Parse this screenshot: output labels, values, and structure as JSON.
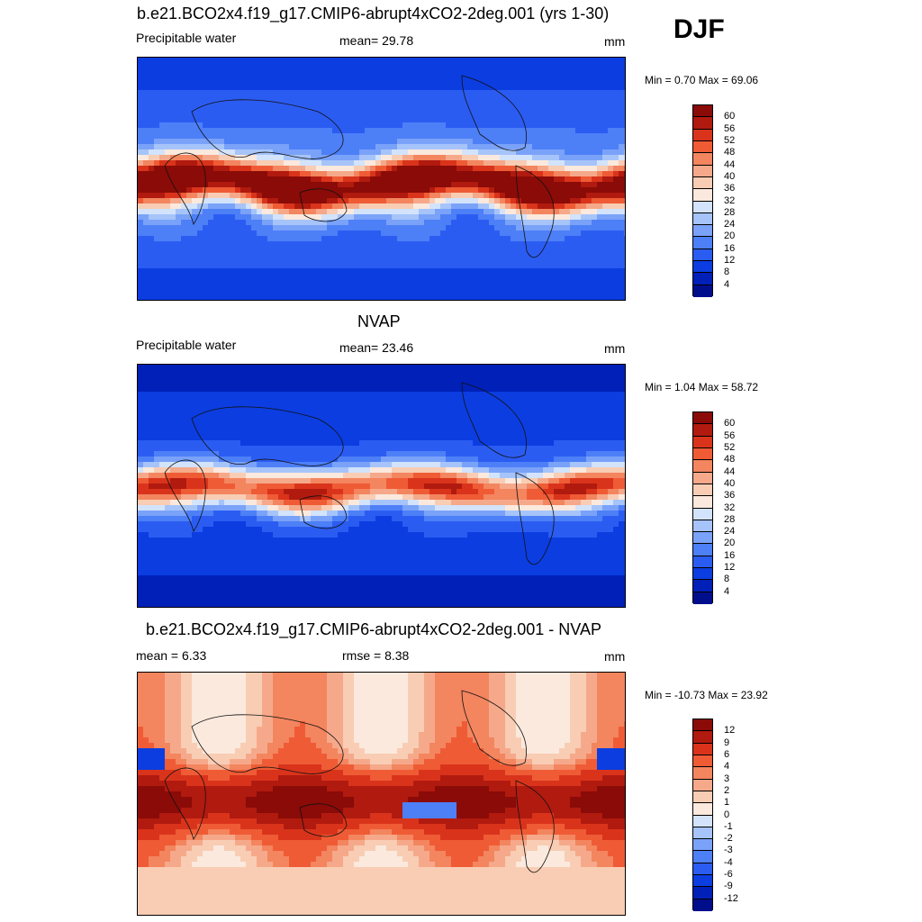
{
  "season": "DJF",
  "panels": [
    {
      "title": "b.e21.BCO2x4.f19_g17.CMIP6-abrupt4xCO2-2deg.001 (yrs 1-30)",
      "left_label": "Precipitable water",
      "mid_label": "mean=  29.78",
      "units": "mm",
      "minmax": "Min =   0.70 Max =  69.06"
    },
    {
      "title": "NVAP",
      "left_label": "Precipitable water",
      "mid_label": "mean=  23.46",
      "units": "mm",
      "minmax": "Min =   1.04 Max =  58.72"
    },
    {
      "title": "b.e21.BCO2x4.f19_g17.CMIP6-abrupt4xCO2-2deg.001 - NVAP",
      "left_label": "mean =   6.33",
      "mid_label": "rmse =   8.38",
      "units": "mm",
      "minmax": "Min = -10.73 Max =  23.92"
    }
  ],
  "chart_data": [
    {
      "type": "heatmap",
      "title": "b.e21.BCO2x4.f19_g17.CMIP6-abrupt4xCO2-2deg.001 (yrs 1-30)",
      "variable": "Precipitable water",
      "units": "mm",
      "mean": 29.78,
      "min": 0.7,
      "max": 69.06,
      "colorbar_levels": [
        4,
        8,
        12,
        16,
        20,
        24,
        28,
        32,
        36,
        40,
        44,
        48,
        52,
        56,
        60
      ],
      "colors": [
        "#000e8c",
        "#0020b8",
        "#0b3de0",
        "#2b5cf2",
        "#4d7ff7",
        "#7aa2f8",
        "#a6c4f9",
        "#d2e3fb",
        "#fbe9dd",
        "#f8cdb4",
        "#f5a98a",
        "#f3855f",
        "#ef5b35",
        "#d9341b",
        "#b11a0f",
        "#8a0b07"
      ]
    },
    {
      "type": "heatmap",
      "title": "NVAP",
      "variable": "Precipitable water",
      "units": "mm",
      "mean": 23.46,
      "min": 1.04,
      "max": 58.72,
      "colorbar_levels": [
        4,
        8,
        12,
        16,
        20,
        24,
        28,
        32,
        36,
        40,
        44,
        48,
        52,
        56,
        60
      ],
      "colors": [
        "#000e8c",
        "#0020b8",
        "#0b3de0",
        "#2b5cf2",
        "#4d7ff7",
        "#7aa2f8",
        "#a6c4f9",
        "#d2e3fb",
        "#fbe9dd",
        "#f8cdb4",
        "#f5a98a",
        "#f3855f",
        "#ef5b35",
        "#d9341b",
        "#b11a0f",
        "#8a0b07"
      ]
    },
    {
      "type": "heatmap",
      "title": "b.e21.BCO2x4.f19_g17.CMIP6-abrupt4xCO2-2deg.001 - NVAP",
      "units": "mm",
      "mean": 6.33,
      "rmse": 8.38,
      "min": -10.73,
      "max": 23.92,
      "colorbar_levels": [
        -12,
        -9,
        -6,
        -4,
        -3,
        -2,
        -1,
        0,
        1,
        2,
        3,
        4,
        6,
        9,
        12
      ],
      "colors": [
        "#000e8c",
        "#0020b8",
        "#0b3de0",
        "#2b5cf2",
        "#4d7ff7",
        "#7aa2f8",
        "#a6c4f9",
        "#d2e3fb",
        "#fbe9dd",
        "#f8cdb4",
        "#f5a98a",
        "#f3855f",
        "#ef5b35",
        "#d9341b",
        "#b11a0f",
        "#8a0b07"
      ]
    }
  ]
}
